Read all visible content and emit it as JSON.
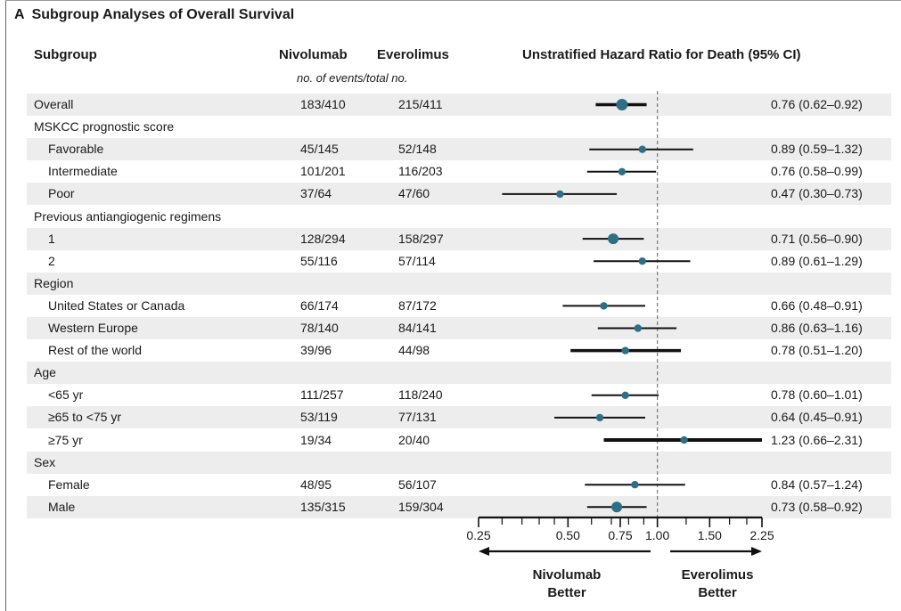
{
  "chart_data": {
    "type": "forest",
    "panel_letter": "A",
    "title": "Subgroup Analyses of Overall Survival",
    "columns": {
      "subgroup": "Subgroup",
      "nivolumab": "Nivolumab",
      "everolimus": "Everolimus",
      "hr": "Unstratified Hazard Ratio for Death (95% CI)",
      "events_note": "no. of events/total no."
    },
    "x_scale": "log",
    "xlim": [
      0.25,
      2.25
    ],
    "reference_line": 1.0,
    "xticks": [
      {
        "value": 0.25,
        "label": "0.25"
      },
      {
        "value": 0.5,
        "label": "0.50"
      },
      {
        "value": 0.75,
        "label": "0.75"
      },
      {
        "value": 1.0,
        "label": "1.00"
      },
      {
        "value": 1.5,
        "label": "1.50"
      },
      {
        "value": 2.25,
        "label": "2.25"
      }
    ],
    "minor_ticks": [
      0.3,
      0.35,
      0.4,
      0.45,
      0.6,
      0.7,
      0.8,
      0.9,
      1.25,
      1.75,
      2.0
    ],
    "favors_left": "Nivolumab Better",
    "favors_right": "Everolimus Better",
    "rows": [
      {
        "label": "Overall",
        "indent": false,
        "shade": true,
        "nivolumab": "183/410",
        "everolimus": "215/411",
        "hr": 0.76,
        "lo": 0.62,
        "hi": 0.92,
        "hr_text": "0.76 (0.62–0.92)"
      },
      {
        "label": "MSKCC prognostic score",
        "indent": false,
        "shade": false,
        "header": true
      },
      {
        "label": "Favorable",
        "indent": true,
        "shade": true,
        "nivolumab": "45/145",
        "everolimus": "52/148",
        "hr": 0.89,
        "lo": 0.59,
        "hi": 1.32,
        "hr_text": "0.89 (0.59–1.32)"
      },
      {
        "label": "Intermediate",
        "indent": true,
        "shade": false,
        "nivolumab": "101/201",
        "everolimus": "116/203",
        "hr": 0.76,
        "lo": 0.58,
        "hi": 0.99,
        "hr_text": "0.76 (0.58–0.99)"
      },
      {
        "label": "Poor",
        "indent": true,
        "shade": true,
        "nivolumab": "37/64",
        "everolimus": "47/60",
        "hr": 0.47,
        "lo": 0.3,
        "hi": 0.73,
        "hr_text": "0.47 (0.30–0.73)"
      },
      {
        "label": "Previous antiangiogenic regimens",
        "indent": false,
        "shade": false,
        "header": true
      },
      {
        "label": "1",
        "indent": true,
        "shade": true,
        "nivolumab": "128/294",
        "everolimus": "158/297",
        "hr": 0.71,
        "lo": 0.56,
        "hi": 0.9,
        "hr_text": "0.71 (0.56–0.90)"
      },
      {
        "label": "2",
        "indent": true,
        "shade": false,
        "nivolumab": "55/116",
        "everolimus": "57/114",
        "hr": 0.89,
        "lo": 0.61,
        "hi": 1.29,
        "hr_text": "0.89 (0.61–1.29)"
      },
      {
        "label": "Region",
        "indent": false,
        "shade": true,
        "header": true
      },
      {
        "label": "United States or Canada",
        "indent": true,
        "shade": false,
        "nivolumab": "66/174",
        "everolimus": "87/172",
        "hr": 0.66,
        "lo": 0.48,
        "hi": 0.91,
        "hr_text": "0.66 (0.48–0.91)"
      },
      {
        "label": "Western Europe",
        "indent": true,
        "shade": true,
        "nivolumab": "78/140",
        "everolimus": "84/141",
        "hr": 0.86,
        "lo": 0.63,
        "hi": 1.16,
        "hr_text": "0.86 (0.63–1.16)"
      },
      {
        "label": "Rest of the world",
        "indent": true,
        "shade": false,
        "nivolumab": "39/96",
        "everolimus": "44/98",
        "hr": 0.78,
        "lo": 0.51,
        "hi": 1.2,
        "hr_text": "0.78 (0.51–1.20)"
      },
      {
        "label": "Age",
        "indent": false,
        "shade": true,
        "header": true
      },
      {
        "label": "<65 yr",
        "indent": true,
        "shade": false,
        "nivolumab": "111/257",
        "everolimus": "118/240",
        "hr": 0.78,
        "lo": 0.6,
        "hi": 1.01,
        "hr_text": "0.78 (0.60–1.01)"
      },
      {
        "label": "≥65 to <75 yr",
        "indent": true,
        "shade": true,
        "nivolumab": "53/119",
        "everolimus": "77/131",
        "hr": 0.64,
        "lo": 0.45,
        "hi": 0.91,
        "hr_text": "0.64 (0.45–0.91)"
      },
      {
        "label": "≥75 yr",
        "indent": true,
        "shade": false,
        "nivolumab": "19/34",
        "everolimus": "20/40",
        "hr": 1.23,
        "lo": 0.66,
        "hi": 2.31,
        "hr_text": "1.23 (0.66–2.31)"
      },
      {
        "label": "Sex",
        "indent": false,
        "shade": true,
        "header": true
      },
      {
        "label": "Female",
        "indent": true,
        "shade": false,
        "nivolumab": "48/95",
        "everolimus": "56/107",
        "hr": 0.84,
        "lo": 0.57,
        "hi": 1.24,
        "hr_text": "0.84 (0.57–1.24)"
      },
      {
        "label": "Male",
        "indent": true,
        "shade": true,
        "nivolumab": "135/315",
        "everolimus": "159/304",
        "hr": 0.73,
        "lo": 0.58,
        "hi": 0.92,
        "hr_text": "0.73 (0.58–0.92)"
      }
    ],
    "colors": {
      "marker": "#2e6e86",
      "shade": "#ededed",
      "line": "#111111",
      "reference": "#777777"
    }
  }
}
